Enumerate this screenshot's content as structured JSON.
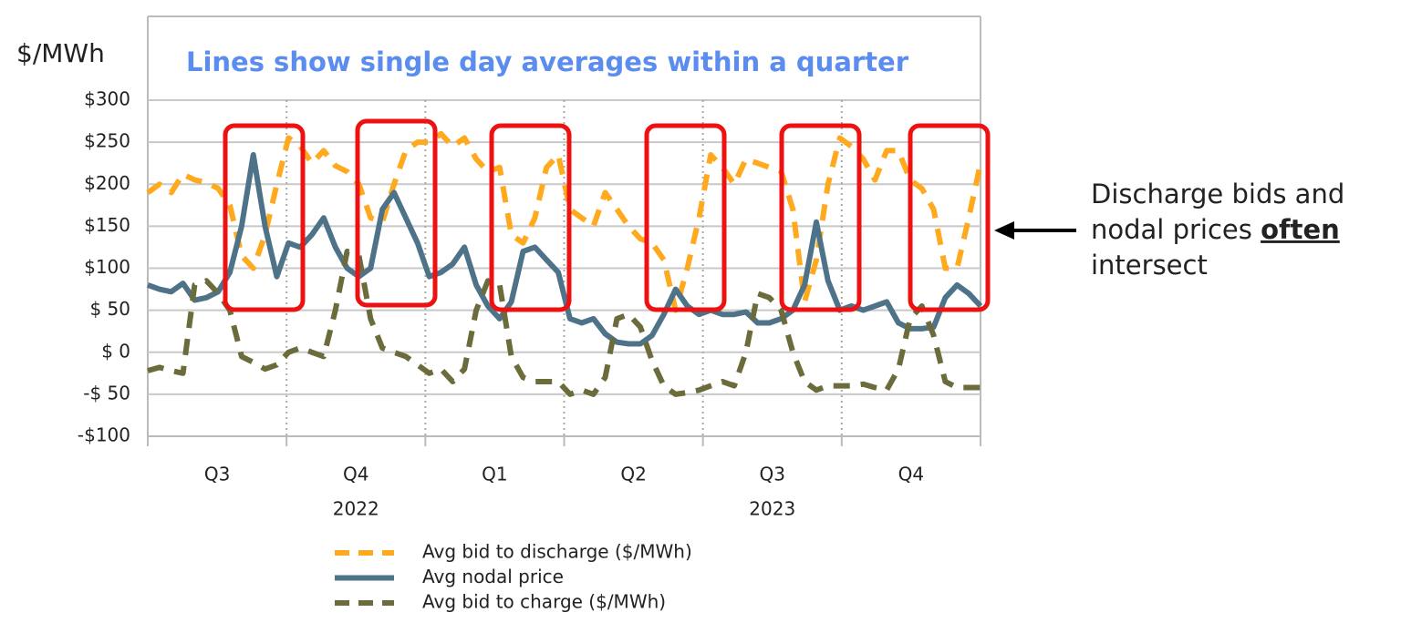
{
  "chart_data": {
    "type": "line",
    "title": "Lines show single day averages within a quarter",
    "y_label": "$/MWh",
    "categories": [
      "Q3",
      "Q4",
      "Q1",
      "Q2",
      "Q3",
      "Q4"
    ],
    "years": [
      "2022",
      "2023"
    ],
    "ylim": [
      -100,
      300
    ],
    "yticks": [
      {
        "value": 300,
        "label": "$300"
      },
      {
        "value": 250,
        "label": "$250"
      },
      {
        "value": 200,
        "label": "$200"
      },
      {
        "value": 150,
        "label": "$150"
      },
      {
        "value": 100,
        "label": "$100"
      },
      {
        "value": 50,
        "label": "$ 50"
      },
      {
        "value": 0,
        "label": "$ 0"
      },
      {
        "value": -50,
        "label": "-$ 50"
      },
      {
        "value": -100,
        "label": "-$100"
      }
    ],
    "grid": true,
    "series": [
      {
        "name": "Avg bid to discharge ($/MWh)",
        "color": "#ffa91f",
        "dash": "dashed",
        "values": [
          [
            190,
            200,
            190,
            212,
            205,
            202,
            195,
            175,
            115,
            100,
            140,
            200
          ],
          [
            255,
            245,
            225,
            240,
            222,
            215,
            200,
            160,
            155,
            200,
            240,
            250
          ],
          [
            250,
            260,
            245,
            255,
            230,
            215,
            220,
            140,
            130,
            160,
            220,
            235
          ],
          [
            170,
            160,
            150,
            190,
            170,
            150,
            135,
            130,
            110,
            50,
            100,
            160
          ],
          [
            235,
            220,
            200,
            230,
            225,
            220,
            215,
            170,
            60,
            110,
            200,
            255
          ],
          [
            245,
            230,
            205,
            240,
            240,
            205,
            195,
            170,
            100,
            100,
            160,
            225
          ]
        ]
      },
      {
        "name": "Avg nodal price",
        "color": "#4e7389",
        "dash": "solid",
        "values": [
          [
            80,
            75,
            72,
            82,
            62,
            65,
            72,
            95,
            150,
            235,
            150,
            90
          ],
          [
            130,
            125,
            140,
            160,
            125,
            100,
            90,
            100,
            170,
            190,
            160,
            130
          ],
          [
            90,
            95,
            105,
            125,
            80,
            55,
            40,
            60,
            120,
            125,
            110,
            95
          ],
          [
            40,
            35,
            40,
            22,
            12,
            10,
            10,
            20,
            45,
            75,
            55,
            45
          ],
          [
            50,
            45,
            45,
            48,
            35,
            35,
            40,
            50,
            80,
            155,
            85,
            50
          ],
          [
            55,
            50,
            55,
            60,
            35,
            28,
            28,
            30,
            65,
            80,
            70,
            55
          ]
        ]
      },
      {
        "name": "Avg bid to charge ($/MWh)",
        "color": "#6b6b3c",
        "dash": "dashed",
        "values": [
          [
            -22,
            -18,
            -22,
            -25,
            80,
            85,
            70,
            50,
            -5,
            -12,
            -20,
            -15
          ],
          [
            0,
            5,
            0,
            -5,
            50,
            120,
            115,
            40,
            5,
            0,
            -5,
            -15
          ],
          [
            -25,
            -20,
            -35,
            -20,
            50,
            85,
            80,
            -5,
            -30,
            -35,
            -35,
            -35
          ],
          [
            -50,
            -45,
            -50,
            -30,
            40,
            45,
            30,
            -10,
            -40,
            -50,
            -48,
            -45
          ],
          [
            -40,
            -35,
            -40,
            0,
            70,
            65,
            50,
            0,
            -35,
            -45,
            -40,
            -40
          ],
          [
            -40,
            -38,
            -42,
            -45,
            -20,
            40,
            55,
            20,
            -35,
            -42,
            -42,
            -42
          ]
        ]
      }
    ],
    "annotation": {
      "line1": "Discharge bids and",
      "line2": "nodal prices",
      "emphasis": "often",
      "line3": "intersect"
    }
  }
}
